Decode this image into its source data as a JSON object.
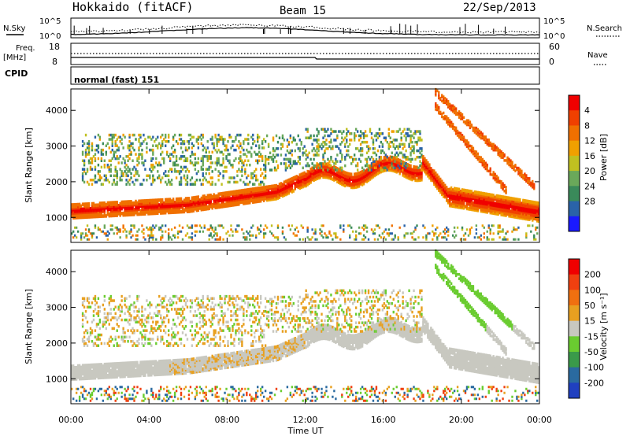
{
  "header": {
    "station": "Hokkaido (fitACF)",
    "beam": "Beam 15",
    "date": "22/Sep/2013"
  },
  "noise_panel": {
    "left_label": "N.Sky",
    "right_label": "N.Search",
    "tick_top": "10^5",
    "tick_bottom": "10^0"
  },
  "freq_panel": {
    "left_label_1": "Freq.",
    "left_label_2": "[MHz]",
    "left_tick_top": "18",
    "left_tick_bottom": "8",
    "right_label": "Nave",
    "right_tick_top": "60",
    "right_tick_bottom": "0"
  },
  "cpid_panel": {
    "label": "CPID",
    "value": "normal (fast) 151"
  },
  "chart_data": [
    {
      "type": "heatmap",
      "name": "power",
      "ylabel": "Slant Range [km]",
      "ylim": [
        300,
        4600
      ],
      "yticks": [
        "1000",
        "2000",
        "3000",
        "4000"
      ],
      "colorbar_label": "Power [dB]",
      "colorbar_ticks": [
        "4",
        "8",
        "12",
        "16",
        "20",
        "24",
        "28"
      ],
      "colors": [
        "#1a1aff",
        "#2a63a8",
        "#3a8a5a",
        "#6aa85a",
        "#c0c020",
        "#f0a000",
        "#f07000",
        "#f04000",
        "#f00000"
      ]
    },
    {
      "type": "heatmap",
      "name": "velocity",
      "ylabel": "Slant Range [km]",
      "ylim": [
        300,
        4600
      ],
      "yticks": [
        "1000",
        "2000",
        "3000",
        "4000"
      ],
      "colorbar_label": "Velocity [m s⁻¹]",
      "colorbar_ticks": [
        "200",
        "100",
        "50",
        "15",
        "-15",
        "-50",
        "-100",
        "-200"
      ],
      "colors": [
        "#2040c0",
        "#2a6aa0",
        "#3a9a4a",
        "#6acc30",
        "#c8c8c0",
        "#e8a020",
        "#f07010",
        "#f04010",
        "#f00000"
      ]
    }
  ],
  "x_axis": {
    "label": "Time UT",
    "ticks": [
      "00:00",
      "04:00",
      "08:00",
      "12:00",
      "16:00",
      "20:00",
      "00:00"
    ]
  }
}
